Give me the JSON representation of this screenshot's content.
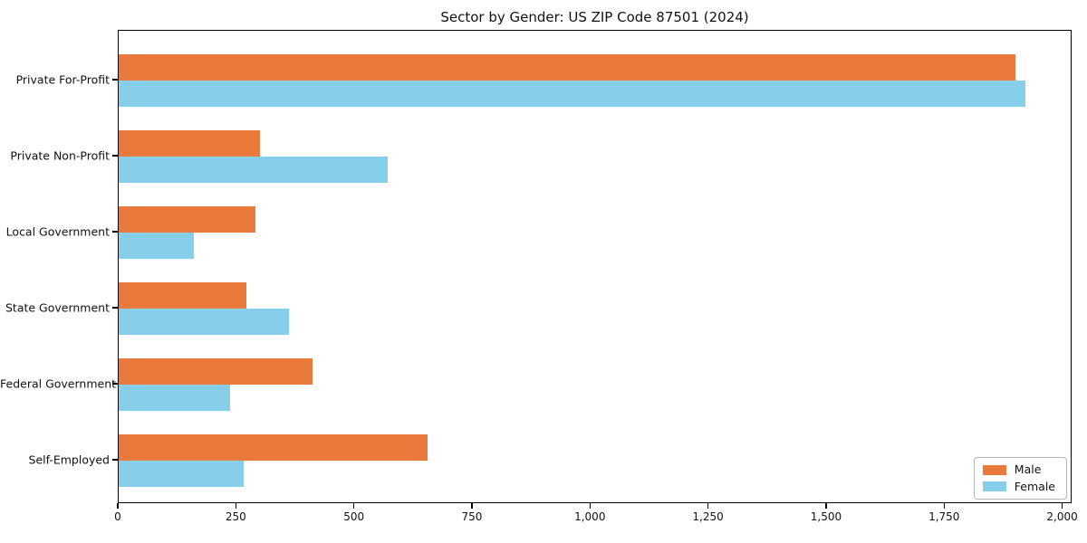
{
  "chart_data": {
    "type": "bar",
    "orientation": "horizontal",
    "title": "Sector by Gender: US ZIP Code 87501 (2024)",
    "xlabel": "",
    "ylabel": "",
    "categories": [
      "Private For-Profit",
      "Private Non-Profit",
      "Local Government",
      "State Government",
      "Federal Government",
      "Self-Employed"
    ],
    "series": [
      {
        "name": "Male",
        "color": "#E97A3C",
        "values": [
          1900,
          300,
          290,
          270,
          410,
          655
        ]
      },
      {
        "name": "Female",
        "color": "#87CEEB",
        "values": [
          1920,
          570,
          160,
          360,
          235,
          265
        ]
      }
    ],
    "xlim": [
      0,
      2020
    ],
    "xticks": [
      0,
      250,
      500,
      750,
      1000,
      1250,
      1500,
      1750,
      2000
    ],
    "xtick_labels": [
      "0",
      "250",
      "500",
      "750",
      "1,000",
      "1,250",
      "1,500",
      "1,750",
      "2,000"
    ],
    "legend_position": "lower right",
    "grid": false,
    "background_color": "#ffffff",
    "spine_color": "#000000"
  }
}
